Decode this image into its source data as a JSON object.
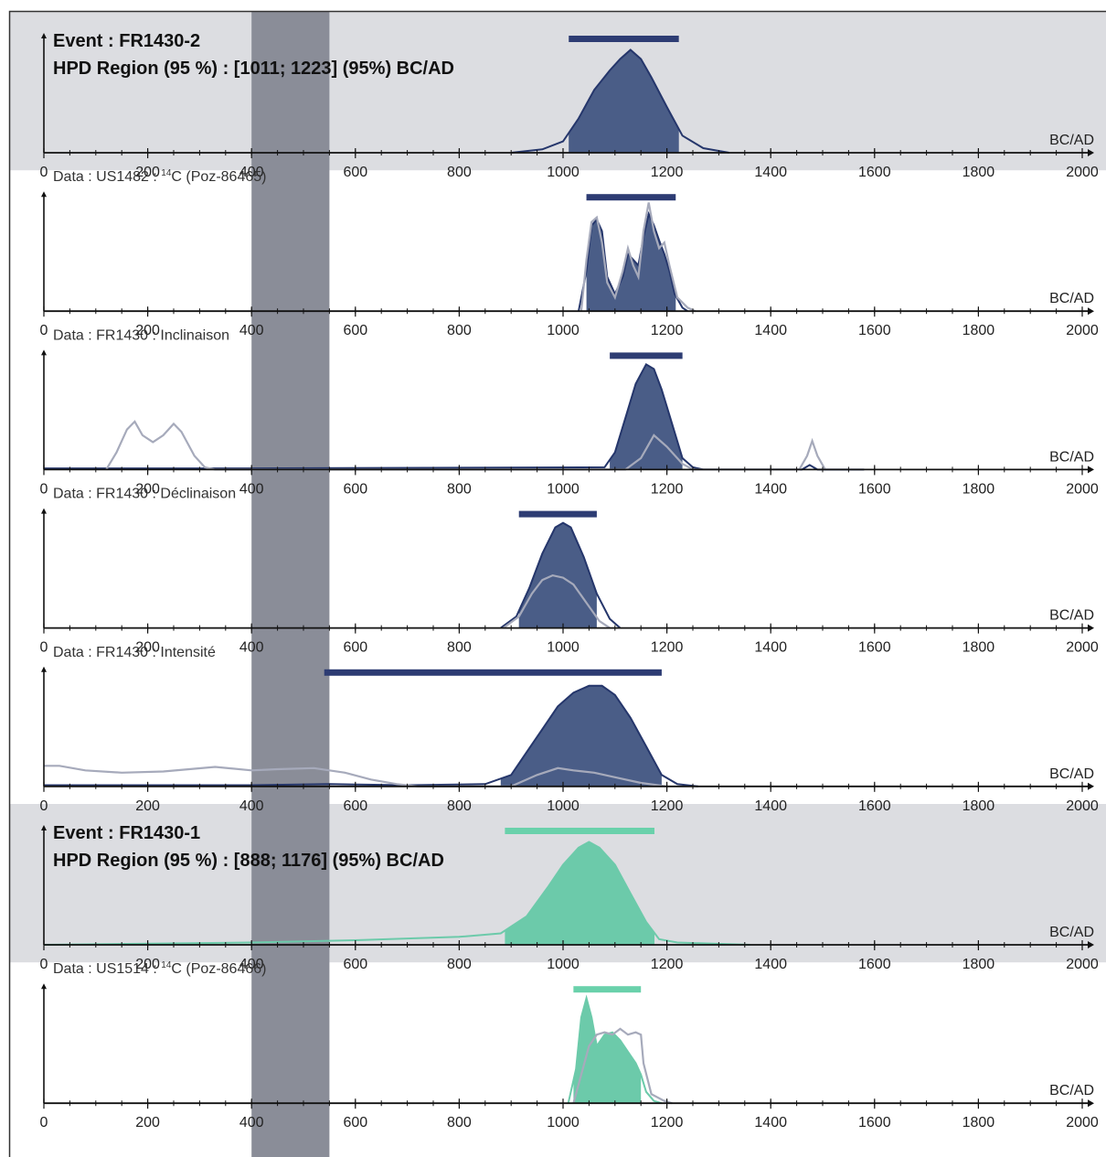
{
  "colors": {
    "event_background": "#dcdde1",
    "blue": "#4a5d87",
    "blue_dark": "#25366b",
    "blue_bar": "#2d3c73",
    "teal": "#6ccaaa",
    "teal_bar": "#6ad1ab",
    "raw_curve": "#a6aabb",
    "band": "#8a8d98",
    "axis": "#111111"
  },
  "shared": {
    "x_axis_label": "BC/AD",
    "x_ticks": [
      0,
      200,
      400,
      600,
      800,
      1000,
      1200,
      1400,
      1600,
      1800,
      2000
    ],
    "x_range": [
      0,
      2000
    ],
    "highlight_band": [
      400,
      550
    ]
  },
  "chart_data": [
    {
      "type": "area",
      "kind": "event",
      "title": "Event : FR1430-2",
      "subtitle": "HPD Region (95 %) : [1011; 1223] (95%) BC/AD",
      "color": "blue",
      "hpd_bar": [
        1011,
        1223
      ],
      "hpd_fill": [
        1011,
        1223
      ],
      "curve": [
        [
          900,
          0
        ],
        [
          960,
          0.03
        ],
        [
          1000,
          0.1
        ],
        [
          1030,
          0.3
        ],
        [
          1060,
          0.55
        ],
        [
          1090,
          0.72
        ],
        [
          1110,
          0.82
        ],
        [
          1130,
          0.9
        ],
        [
          1150,
          0.82
        ],
        [
          1170,
          0.66
        ],
        [
          1200,
          0.4
        ],
        [
          1230,
          0.15
        ],
        [
          1270,
          0.04
        ],
        [
          1320,
          0
        ]
      ]
    },
    {
      "type": "area",
      "kind": "data",
      "title_prefix": "Data : US1482 : ",
      "title_sup": "14",
      "title_suffix": "C (Poz-86465)",
      "color": "blue",
      "hpd_bar": [
        1045,
        1217
      ],
      "hpd_fill": [
        1045,
        1217
      ],
      "curve": [
        [
          1030,
          0
        ],
        [
          1045,
          0.35
        ],
        [
          1055,
          0.75
        ],
        [
          1065,
          0.8
        ],
        [
          1075,
          0.7
        ],
        [
          1085,
          0.3
        ],
        [
          1100,
          0.15
        ],
        [
          1115,
          0.3
        ],
        [
          1125,
          0.5
        ],
        [
          1135,
          0.45
        ],
        [
          1145,
          0.4
        ],
        [
          1155,
          0.65
        ],
        [
          1165,
          0.85
        ],
        [
          1175,
          0.75
        ],
        [
          1185,
          0.62
        ],
        [
          1195,
          0.5
        ],
        [
          1205,
          0.35
        ],
        [
          1215,
          0.15
        ],
        [
          1230,
          0.03
        ],
        [
          1240,
          0
        ]
      ],
      "raw_curve": [
        [
          1035,
          0
        ],
        [
          1045,
          0.45
        ],
        [
          1055,
          0.78
        ],
        [
          1065,
          0.82
        ],
        [
          1075,
          0.6
        ],
        [
          1085,
          0.25
        ],
        [
          1100,
          0.12
        ],
        [
          1115,
          0.35
        ],
        [
          1125,
          0.55
        ],
        [
          1135,
          0.4
        ],
        [
          1145,
          0.3
        ],
        [
          1155,
          0.7
        ],
        [
          1165,
          0.95
        ],
        [
          1175,
          0.7
        ],
        [
          1185,
          0.55
        ],
        [
          1195,
          0.6
        ],
        [
          1205,
          0.4
        ],
        [
          1220,
          0.12
        ],
        [
          1240,
          0.03
        ],
        [
          1255,
          0
        ]
      ]
    },
    {
      "type": "area",
      "kind": "data",
      "title_prefix": "Data : FR1430 : Inclinaison",
      "title_sup": "",
      "title_suffix": "",
      "color": "blue",
      "hpd_bar": [
        1090,
        1230
      ],
      "hpd_fill": [
        1090,
        1230
      ],
      "curve": [
        [
          0,
          0.01
        ],
        [
          400,
          0.01
        ],
        [
          1080,
          0.02
        ],
        [
          1100,
          0.15
        ],
        [
          1120,
          0.45
        ],
        [
          1140,
          0.75
        ],
        [
          1160,
          0.92
        ],
        [
          1175,
          0.88
        ],
        [
          1190,
          0.7
        ],
        [
          1210,
          0.4
        ],
        [
          1230,
          0.1
        ],
        [
          1250,
          0.02
        ],
        [
          1270,
          0
        ],
        [
          1460,
          0
        ],
        [
          1475,
          0.04
        ],
        [
          1490,
          0
        ],
        [
          1580,
          0
        ]
      ],
      "raw_curve": [
        [
          120,
          0
        ],
        [
          140,
          0.15
        ],
        [
          160,
          0.35
        ],
        [
          175,
          0.42
        ],
        [
          190,
          0.3
        ],
        [
          210,
          0.24
        ],
        [
          230,
          0.3
        ],
        [
          250,
          0.4
        ],
        [
          265,
          0.33
        ],
        [
          290,
          0.12
        ],
        [
          310,
          0.02
        ],
        [
          330,
          0
        ],
        [
          1120,
          0
        ],
        [
          1150,
          0.1
        ],
        [
          1175,
          0.3
        ],
        [
          1200,
          0.2
        ],
        [
          1230,
          0.05
        ],
        [
          1250,
          0
        ],
        [
          1455,
          0
        ],
        [
          1470,
          0.12
        ],
        [
          1480,
          0.25
        ],
        [
          1490,
          0.12
        ],
        [
          1505,
          0
        ]
      ]
    },
    {
      "type": "area",
      "kind": "data",
      "title_prefix": "Data : FR1430 : Déclinaison",
      "title_sup": "",
      "title_suffix": "",
      "color": "blue",
      "hpd_bar": [
        915,
        1065
      ],
      "hpd_fill": [
        915,
        1065
      ],
      "curve": [
        [
          880,
          0
        ],
        [
          910,
          0.1
        ],
        [
          935,
          0.35
        ],
        [
          960,
          0.65
        ],
        [
          985,
          0.88
        ],
        [
          1000,
          0.92
        ],
        [
          1015,
          0.88
        ],
        [
          1040,
          0.62
        ],
        [
          1065,
          0.3
        ],
        [
          1090,
          0.08
        ],
        [
          1110,
          0
        ]
      ],
      "raw_curve": [
        [
          885,
          0
        ],
        [
          915,
          0.1
        ],
        [
          940,
          0.3
        ],
        [
          960,
          0.42
        ],
        [
          980,
          0.46
        ],
        [
          1000,
          0.44
        ],
        [
          1020,
          0.38
        ],
        [
          1045,
          0.22
        ],
        [
          1070,
          0.06
        ],
        [
          1090,
          0
        ]
      ]
    },
    {
      "type": "area",
      "kind": "data",
      "title_prefix": "Data : FR1430 : Intensité",
      "title_sup": "",
      "title_suffix": "",
      "color": "blue",
      "hpd_bar": [
        540,
        1190
      ],
      "hpd_fill": [
        880,
        1190
      ],
      "curve": [
        [
          0,
          0.01
        ],
        [
          400,
          0.01
        ],
        [
          550,
          0.02
        ],
        [
          700,
          0.01
        ],
        [
          850,
          0.02
        ],
        [
          900,
          0.1
        ],
        [
          930,
          0.3
        ],
        [
          960,
          0.5
        ],
        [
          990,
          0.7
        ],
        [
          1020,
          0.82
        ],
        [
          1050,
          0.88
        ],
        [
          1075,
          0.88
        ],
        [
          1100,
          0.8
        ],
        [
          1130,
          0.6
        ],
        [
          1160,
          0.35
        ],
        [
          1190,
          0.1
        ],
        [
          1220,
          0.02
        ],
        [
          1260,
          0
        ]
      ],
      "raw_curve": [
        [
          0,
          0.18
        ],
        [
          30,
          0.18
        ],
        [
          80,
          0.14
        ],
        [
          150,
          0.12
        ],
        [
          230,
          0.13
        ],
        [
          330,
          0.17
        ],
        [
          400,
          0.14
        ],
        [
          450,
          0.15
        ],
        [
          520,
          0.16
        ],
        [
          580,
          0.12
        ],
        [
          630,
          0.06
        ],
        [
          680,
          0.02
        ],
        [
          720,
          0
        ],
        [
          900,
          0
        ],
        [
          950,
          0.1
        ],
        [
          990,
          0.16
        ],
        [
          1020,
          0.14
        ],
        [
          1060,
          0.12
        ],
        [
          1100,
          0.08
        ],
        [
          1150,
          0.03
        ],
        [
          1200,
          0
        ]
      ]
    },
    {
      "type": "area",
      "kind": "event",
      "title": "Event : FR1430-1",
      "subtitle": "HPD Region (95 %) : [888; 1176] (95%) BC/AD",
      "color": "teal",
      "hpd_bar": [
        888,
        1176
      ],
      "hpd_fill": [
        888,
        1176
      ],
      "curve": [
        [
          0,
          0
        ],
        [
          200,
          0.01
        ],
        [
          400,
          0.02
        ],
        [
          600,
          0.04
        ],
        [
          800,
          0.07
        ],
        [
          880,
          0.1
        ],
        [
          930,
          0.25
        ],
        [
          970,
          0.5
        ],
        [
          1000,
          0.7
        ],
        [
          1030,
          0.85
        ],
        [
          1050,
          0.9
        ],
        [
          1070,
          0.85
        ],
        [
          1100,
          0.7
        ],
        [
          1130,
          0.45
        ],
        [
          1160,
          0.2
        ],
        [
          1185,
          0.05
        ],
        [
          1220,
          0.02
        ],
        [
          1360,
          0
        ]
      ]
    },
    {
      "type": "area",
      "kind": "data",
      "title_prefix": "Data : US1514 : ",
      "title_sup": "14",
      "title_suffix": "C (Poz-86466)",
      "color": "teal",
      "hpd_bar": [
        1020,
        1150
      ],
      "hpd_fill": [
        1020,
        1150
      ],
      "curve": [
        [
          1010,
          0
        ],
        [
          1025,
          0.3
        ],
        [
          1035,
          0.75
        ],
        [
          1045,
          0.92
        ],
        [
          1055,
          0.75
        ],
        [
          1065,
          0.5
        ],
        [
          1080,
          0.6
        ],
        [
          1095,
          0.62
        ],
        [
          1110,
          0.55
        ],
        [
          1125,
          0.45
        ],
        [
          1140,
          0.35
        ],
        [
          1150,
          0.25
        ],
        [
          1160,
          0.1
        ],
        [
          1175,
          0.02
        ],
        [
          1190,
          0
        ]
      ],
      "raw_curve": [
        [
          1020,
          0
        ],
        [
          1035,
          0.25
        ],
        [
          1050,
          0.5
        ],
        [
          1065,
          0.6
        ],
        [
          1080,
          0.62
        ],
        [
          1095,
          0.6
        ],
        [
          1110,
          0.65
        ],
        [
          1125,
          0.6
        ],
        [
          1140,
          0.62
        ],
        [
          1150,
          0.6
        ],
        [
          1155,
          0.35
        ],
        [
          1170,
          0.08
        ],
        [
          1195,
          0.02
        ],
        [
          1210,
          0
        ]
      ]
    }
  ]
}
